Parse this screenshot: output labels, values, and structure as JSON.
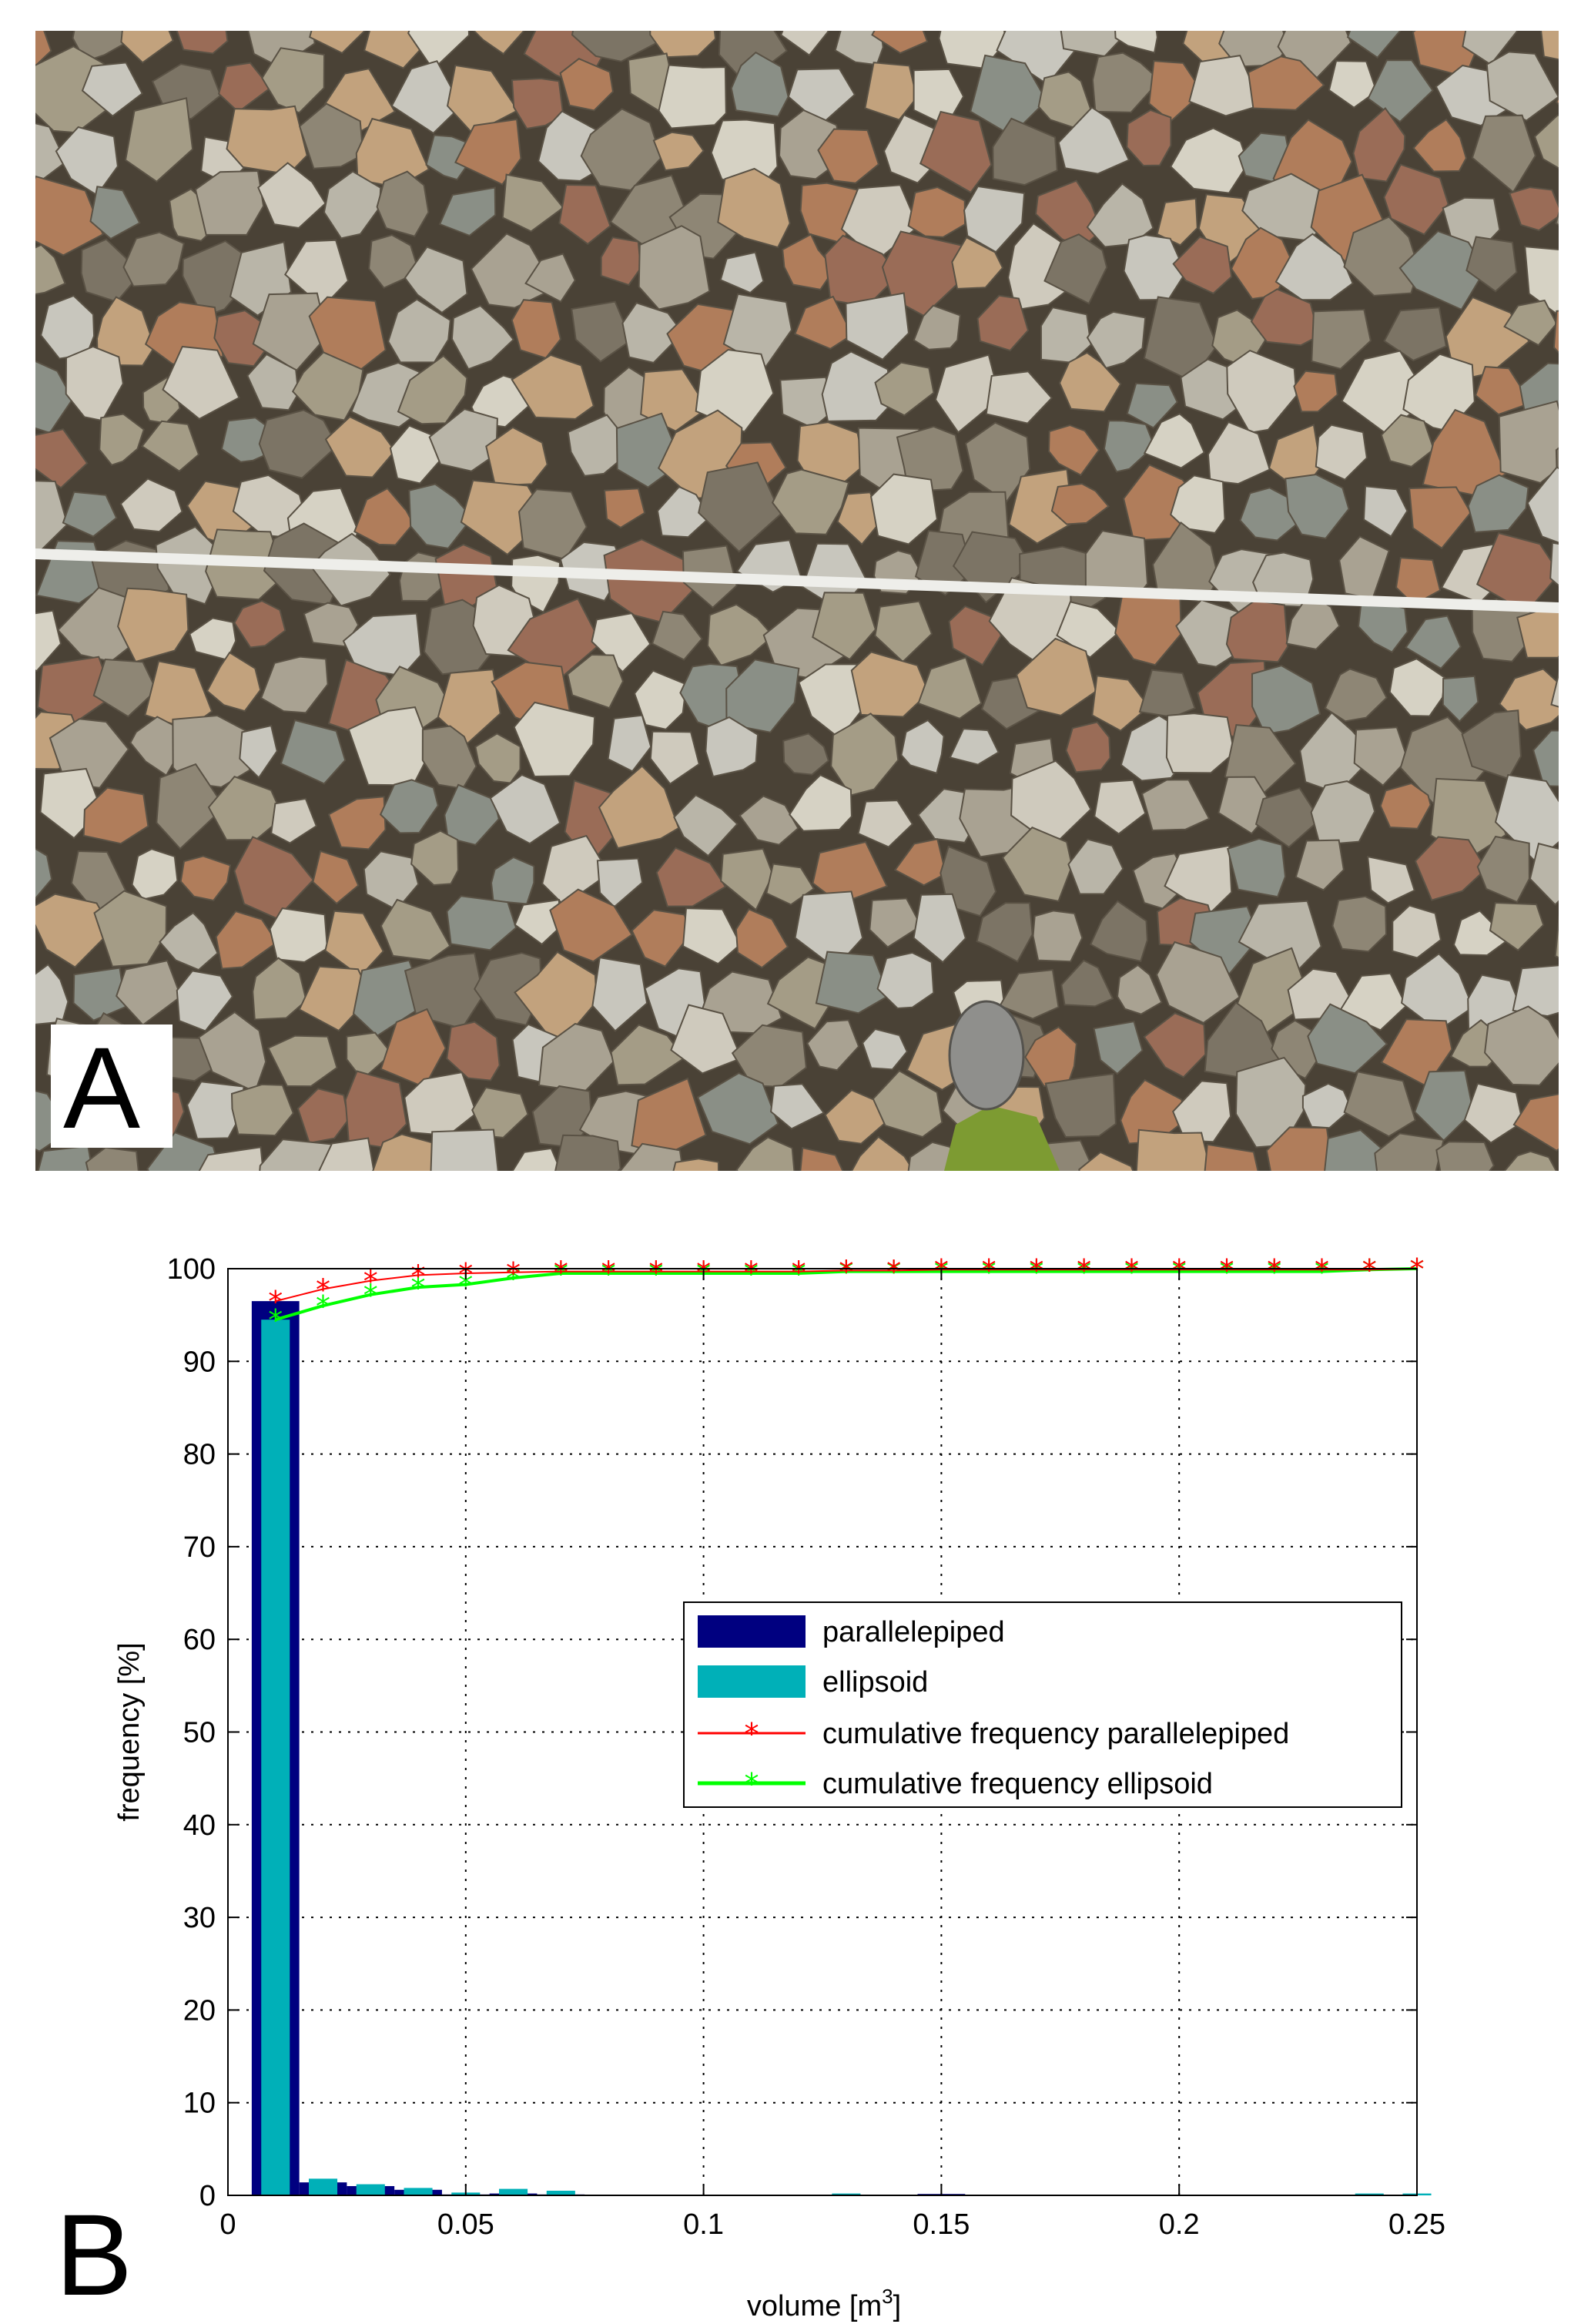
{
  "panels": {
    "photo_label": "A",
    "chart_label": "B"
  },
  "photo": {
    "palette": [
      "#b9b5a8",
      "#a9a292",
      "#cfcabd",
      "#8e8675",
      "#b07d5b",
      "#9a6c57",
      "#c8c6bd",
      "#7c7465",
      "#d6d2c4",
      "#a49c86",
      "#c2a27d",
      "#8a8f86"
    ],
    "tape_color": "#eeeeea",
    "gap_color": "#4a4236",
    "shoe_color": "#7d9b32"
  },
  "chart_data": {
    "type": "bar",
    "xlabel": "volume [m",
    "xlabel_sup": "3",
    "xlabel_end": "]",
    "ylabel": "frequency [%]",
    "xlim": [
      0,
      0.25
    ],
    "ylim": [
      0,
      100
    ],
    "grid": true,
    "xticks": [
      0,
      0.05,
      0.1,
      0.15,
      0.2,
      0.25
    ],
    "xtick_labels": [
      "0",
      "0.05",
      "0.1",
      "0.15",
      "0.2",
      "0.25"
    ],
    "yticks": [
      0,
      10,
      20,
      30,
      40,
      50,
      60,
      70,
      80,
      90,
      100
    ],
    "ytick_labels": [
      "0",
      "10",
      "20",
      "30",
      "40",
      "50",
      "60",
      "70",
      "80",
      "90",
      "100"
    ],
    "bin_width": 0.01,
    "bins": [
      0.01,
      0.02,
      0.03,
      0.04,
      0.05,
      0.06,
      0.07,
      0.08,
      0.09,
      0.1,
      0.11,
      0.12,
      0.13,
      0.14,
      0.15,
      0.16,
      0.17,
      0.18,
      0.19,
      0.2,
      0.21,
      0.22,
      0.23,
      0.24,
      0.25
    ],
    "series": [
      {
        "name": "parallelepiped",
        "kind": "bar",
        "color": "#000080",
        "values": [
          96.5,
          1.4,
          1.0,
          0.6,
          0.1,
          0.2,
          0.1,
          0,
          0,
          0,
          0,
          0,
          0,
          0,
          0.15,
          0,
          0,
          0,
          0,
          0,
          0,
          0,
          0,
          0,
          0
        ]
      },
      {
        "name": "ellipsoid",
        "kind": "bar",
        "color": "#00b0b8",
        "values": [
          94.5,
          1.8,
          1.2,
          0.8,
          0.3,
          0.7,
          0.5,
          0,
          0,
          0,
          0,
          0,
          0.2,
          0,
          0,
          0,
          0,
          0,
          0,
          0,
          0,
          0,
          0,
          0.2,
          0.2
        ]
      },
      {
        "name": "cumulative frequency parallelepiped",
        "kind": "line",
        "color": "#ff0000",
        "marker": "*",
        "values": [
          96.5,
          97.8,
          98.7,
          99.3,
          99.5,
          99.6,
          99.7,
          99.7,
          99.7,
          99.7,
          99.7,
          99.7,
          99.8,
          99.8,
          99.9,
          99.9,
          99.9,
          99.9,
          99.9,
          99.9,
          99.9,
          99.9,
          99.9,
          99.9,
          100
        ]
      },
      {
        "name": "cumulative frequency ellipsoid",
        "kind": "line",
        "color": "#00ff00",
        "marker": "*",
        "values": [
          94.5,
          96.0,
          97.2,
          98.0,
          98.3,
          99.0,
          99.5,
          99.5,
          99.5,
          99.5,
          99.5,
          99.5,
          99.7,
          99.7,
          99.7,
          99.7,
          99.7,
          99.7,
          99.7,
          99.7,
          99.7,
          99.7,
          99.7,
          99.9,
          100
        ]
      }
    ],
    "legend_position": "center-right"
  }
}
